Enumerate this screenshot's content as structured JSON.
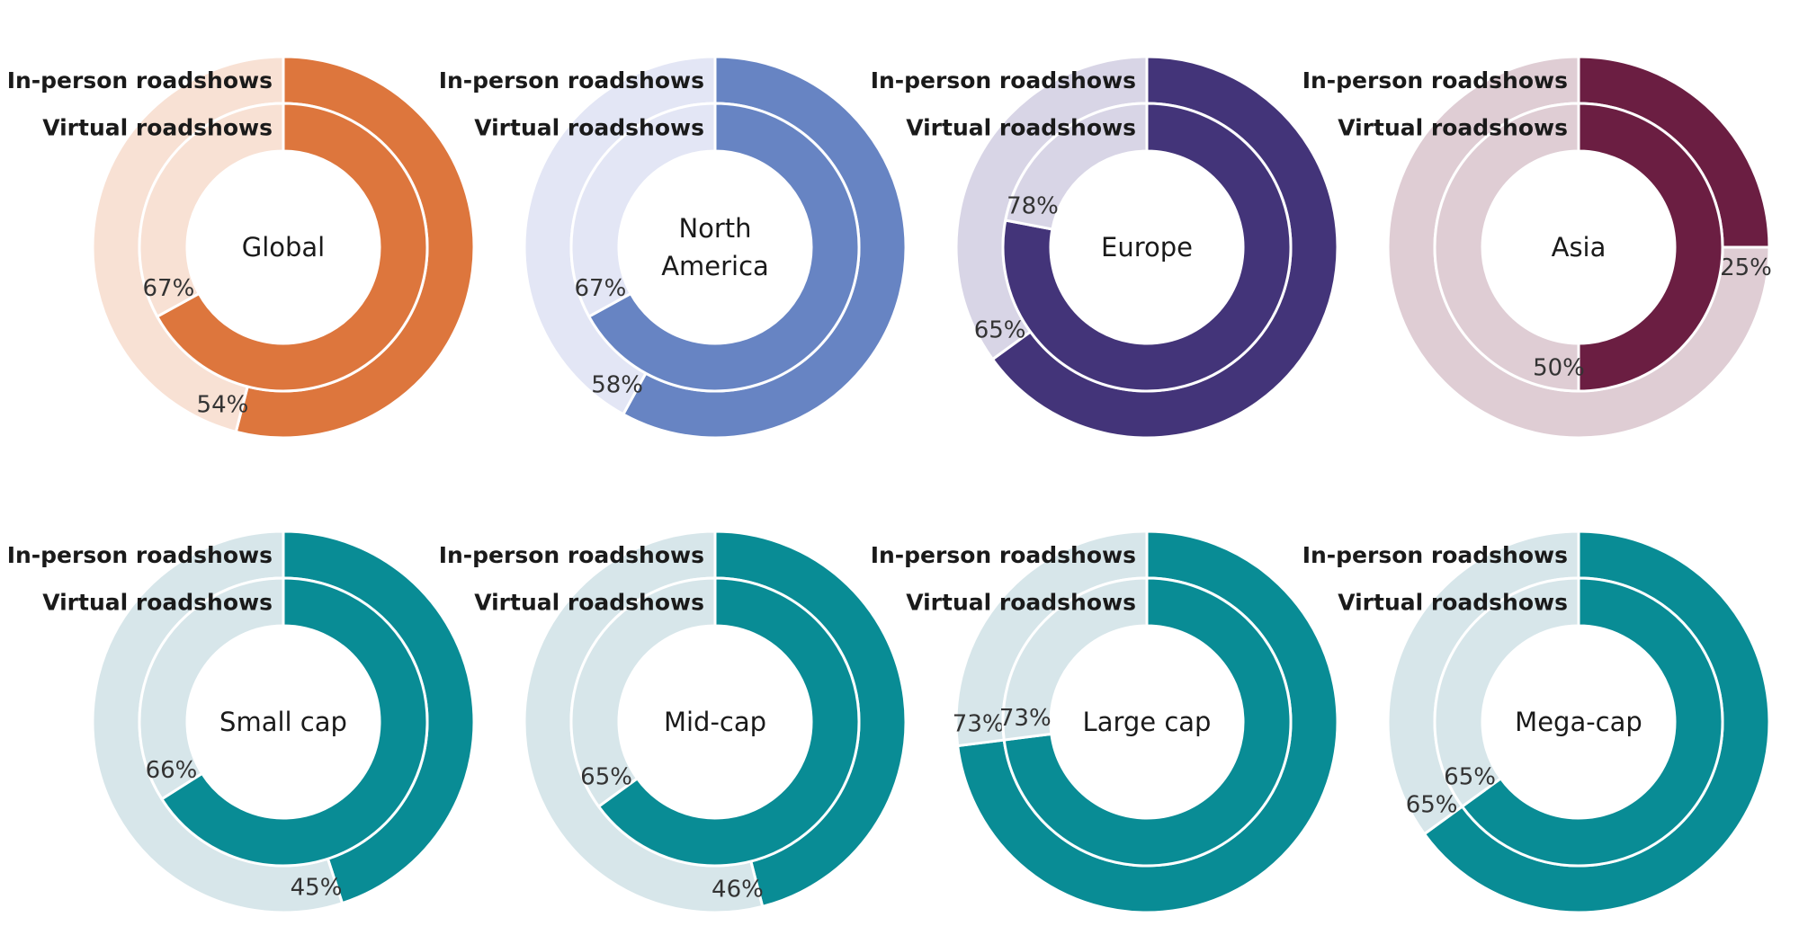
{
  "chart_data": [
    {
      "type": "donut",
      "title": "Global",
      "title_lines": [
        "Global"
      ],
      "series": [
        {
          "name": "In-person roadshows",
          "ring": "outer",
          "value": 54,
          "label": "54%"
        },
        {
          "name": "Virtual roadshows",
          "ring": "inner",
          "value": 67,
          "label": "67%"
        }
      ],
      "color_dark": "#DD763D",
      "color_light": "#F8E1D4"
    },
    {
      "type": "donut",
      "title": "North America",
      "title_lines": [
        "North",
        "America"
      ],
      "series": [
        {
          "name": "In-person roadshows",
          "ring": "outer",
          "value": 58,
          "label": "58%"
        },
        {
          "name": "Virtual roadshows",
          "ring": "inner",
          "value": 67,
          "label": "67%"
        }
      ],
      "color_dark": "#6784C3",
      "color_light": "#E3E6F5"
    },
    {
      "type": "donut",
      "title": "Europe",
      "title_lines": [
        "Europe"
      ],
      "series": [
        {
          "name": "In-person roadshows",
          "ring": "outer",
          "value": 65,
          "label": "65%"
        },
        {
          "name": "Virtual roadshows",
          "ring": "inner",
          "value": 78,
          "label": "78%"
        }
      ],
      "color_dark": "#433479",
      "color_light": "#D8D5E6"
    },
    {
      "type": "donut",
      "title": "Asia",
      "title_lines": [
        "Asia"
      ],
      "series": [
        {
          "name": "In-person roadshows",
          "ring": "outer",
          "value": 25,
          "label": "25%"
        },
        {
          "name": "Virtual roadshows",
          "ring": "inner",
          "value": 50,
          "label": "50%"
        }
      ],
      "color_dark": "#6B1E42",
      "color_light": "#DFCDD4"
    },
    {
      "type": "donut",
      "title": "Small cap",
      "title_lines": [
        "Small cap"
      ],
      "series": [
        {
          "name": "In-person roadshows",
          "ring": "outer",
          "value": 45,
          "label": "45%"
        },
        {
          "name": "Virtual roadshows",
          "ring": "inner",
          "value": 66,
          "label": "66%"
        }
      ],
      "color_dark": "#098C95",
      "color_light": "#D7E6EA"
    },
    {
      "type": "donut",
      "title": "Mid-cap",
      "title_lines": [
        "Mid-cap"
      ],
      "series": [
        {
          "name": "In-person roadshows",
          "ring": "outer",
          "value": 46,
          "label": "46%"
        },
        {
          "name": "Virtual roadshows",
          "ring": "inner",
          "value": 65,
          "label": "65%"
        }
      ],
      "color_dark": "#098C95",
      "color_light": "#D7E6EA"
    },
    {
      "type": "donut",
      "title": "Large cap",
      "title_lines": [
        "Large cap"
      ],
      "series": [
        {
          "name": "In-person roadshows",
          "ring": "outer",
          "value": 73,
          "label": "73%"
        },
        {
          "name": "Virtual roadshows",
          "ring": "inner",
          "value": 73,
          "label": "73%"
        }
      ],
      "color_dark": "#098C95",
      "color_light": "#D7E6EA"
    },
    {
      "type": "donut",
      "title": "Mega-cap",
      "title_lines": [
        "Mega-cap"
      ],
      "series": [
        {
          "name": "In-person roadshows",
          "ring": "outer",
          "value": 65,
          "label": "65%"
        },
        {
          "name": "Virtual roadshows",
          "ring": "inner",
          "value": 65,
          "label": "65%"
        }
      ],
      "color_dark": "#098C95",
      "color_light": "#D7E6EA"
    }
  ]
}
